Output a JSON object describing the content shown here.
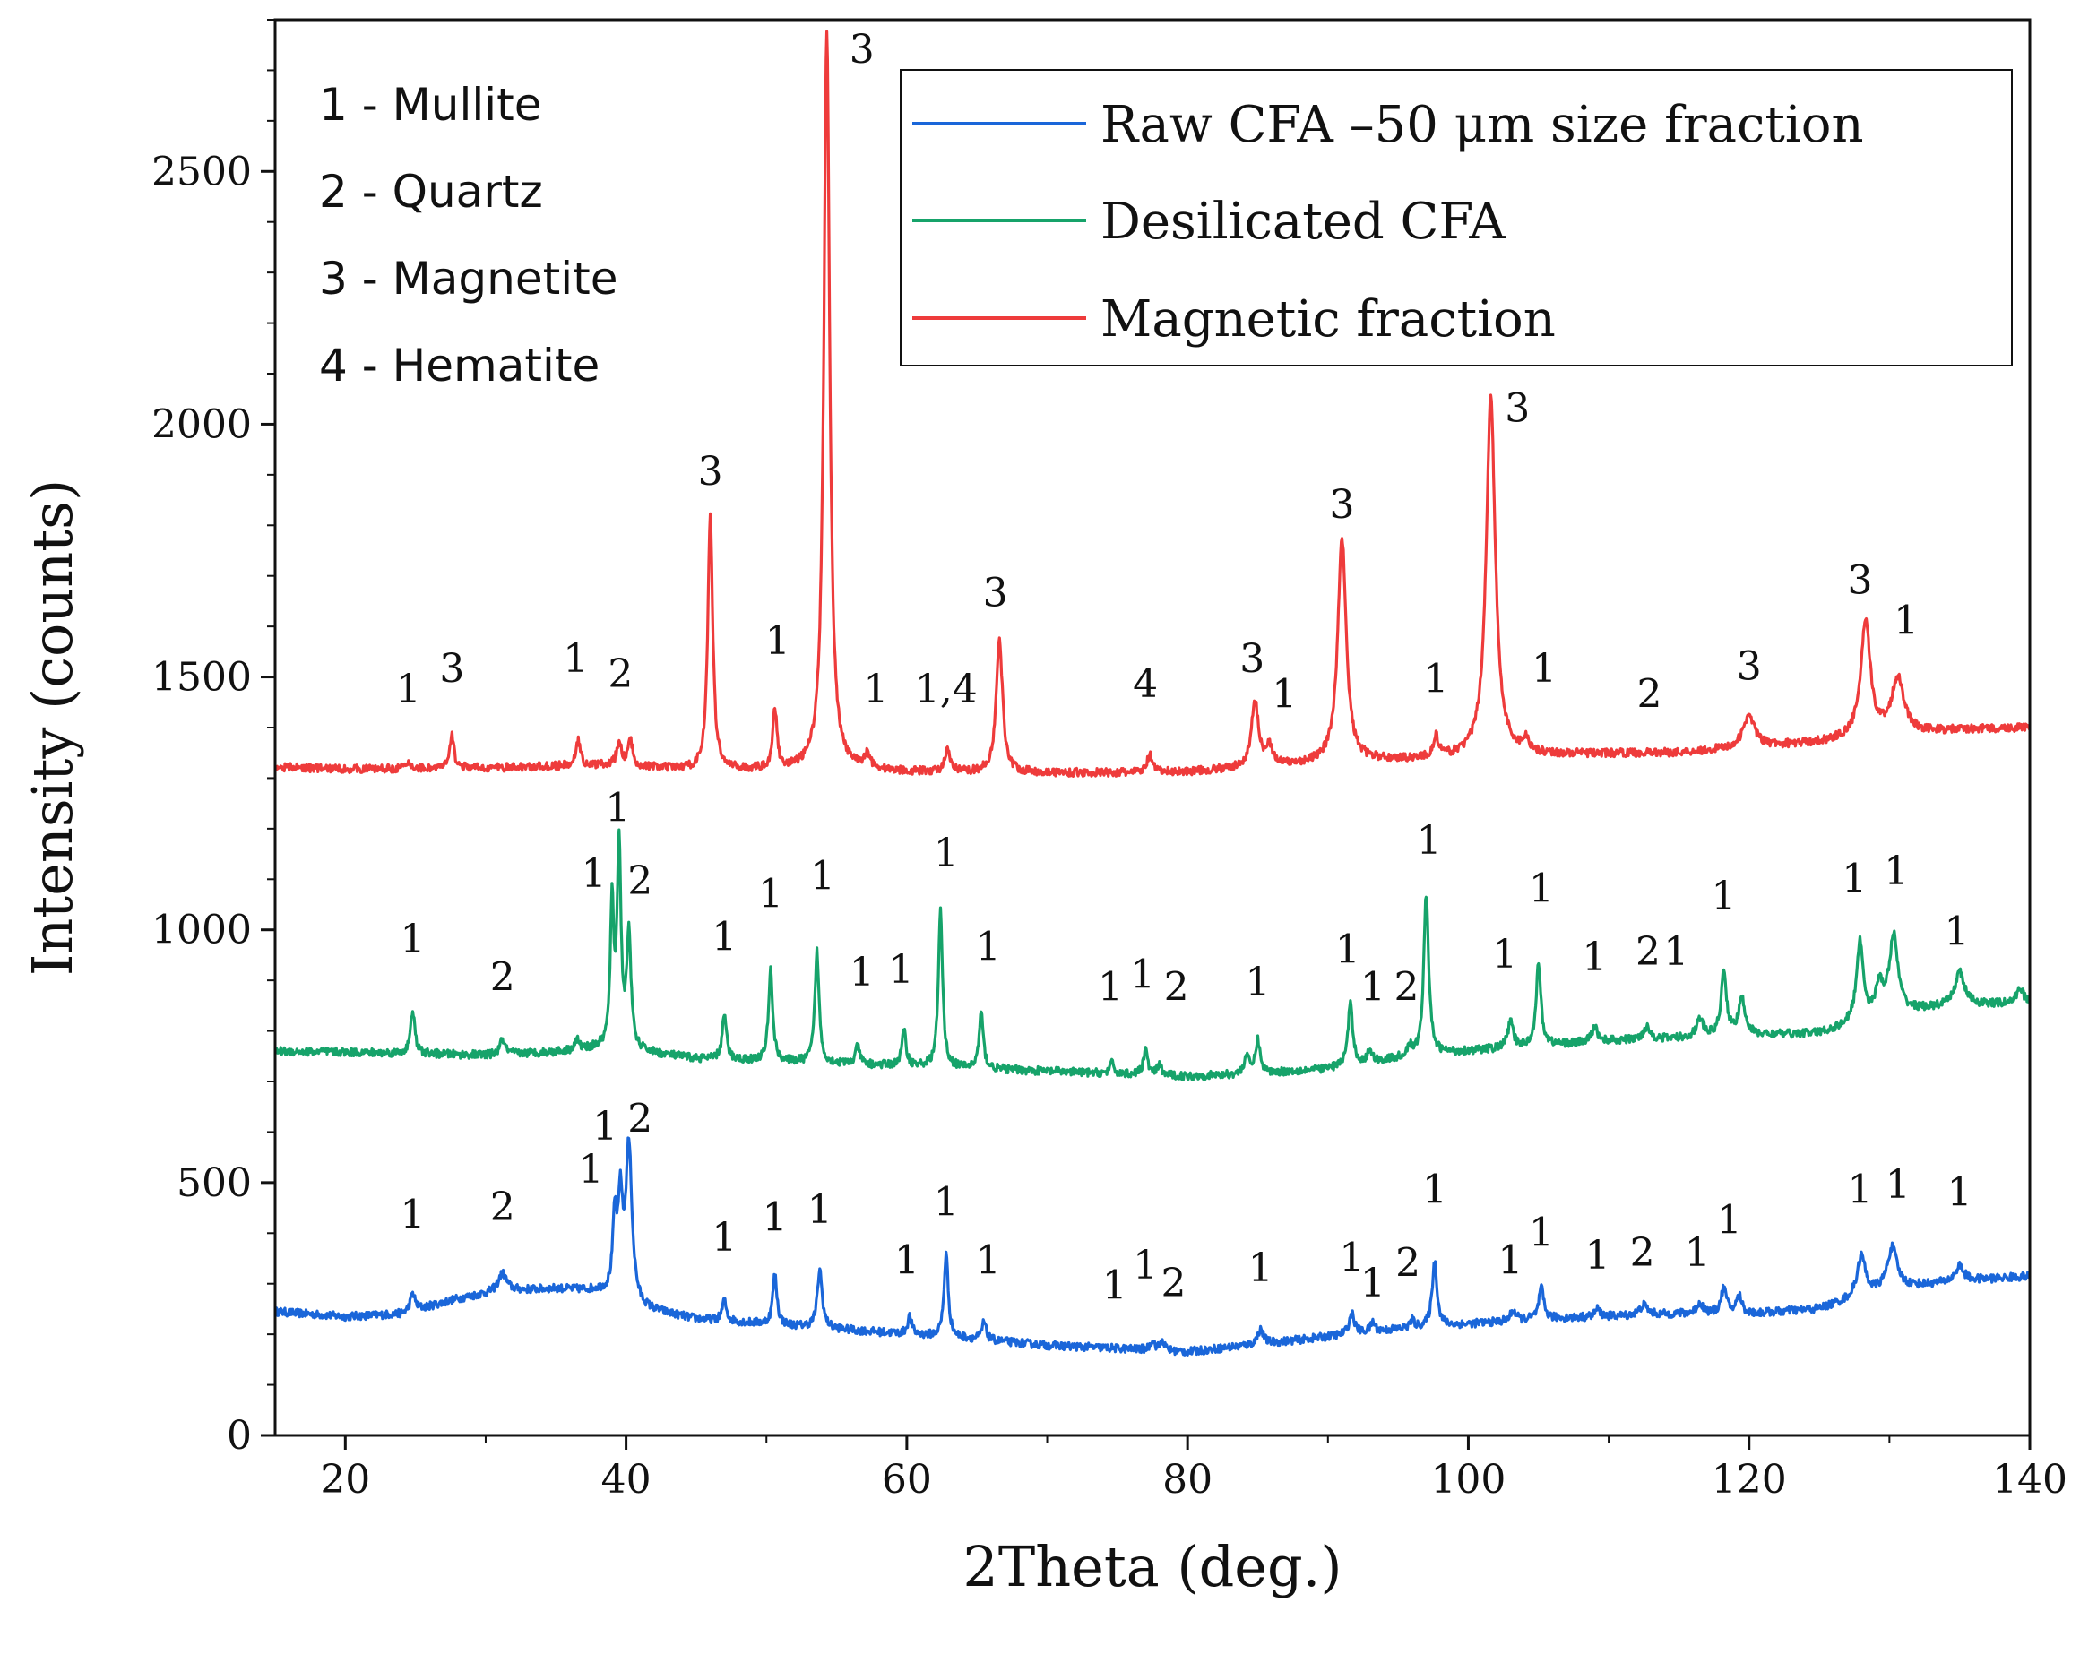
{
  "chart_data": {
    "type": "line",
    "title": "",
    "xlabel": "2Theta (deg.)",
    "ylabel": "Intensity (counts)",
    "xlim": [
      15,
      140
    ],
    "ylim": [
      0,
      2800
    ],
    "xticks": [
      20,
      40,
      60,
      80,
      100,
      120,
      140
    ],
    "yticks": [
      0,
      500,
      1000,
      1500,
      2000,
      2500
    ],
    "grid": false,
    "legend_position": "top-right",
    "phase_key": [
      "1 - Mullite",
      "2 - Quartz",
      "3 - Magnetite",
      "4 - Hematite"
    ],
    "series": [
      {
        "name": "Raw CFA –50 μm size fraction",
        "color": "#1a66d9",
        "baseline": [
          [
            15,
            245
          ],
          [
            20,
            235
          ],
          [
            24,
            240
          ],
          [
            28,
            270
          ],
          [
            31,
            285
          ],
          [
            35,
            290
          ],
          [
            38,
            285
          ],
          [
            41,
            250
          ],
          [
            45,
            230
          ],
          [
            50,
            220
          ],
          [
            55,
            210
          ],
          [
            60,
            200
          ],
          [
            65,
            190
          ],
          [
            70,
            178
          ],
          [
            75,
            172
          ],
          [
            80,
            165
          ],
          [
            85,
            180
          ],
          [
            90,
            195
          ],
          [
            95,
            210
          ],
          [
            100,
            220
          ],
          [
            105,
            230
          ],
          [
            110,
            235
          ],
          [
            115,
            240
          ],
          [
            120,
            240
          ],
          [
            125,
            250
          ],
          [
            130,
            290
          ],
          [
            135,
            305
          ],
          [
            140,
            315
          ]
        ],
        "peaks": [
          [
            24.8,
            35,
            0.35
          ],
          [
            31.2,
            35,
            0.6
          ],
          [
            39.2,
            150,
            0.3
          ],
          [
            39.6,
            180,
            0.3
          ],
          [
            40.2,
            310,
            0.45
          ],
          [
            47.0,
            40,
            0.3
          ],
          [
            50.6,
            100,
            0.3
          ],
          [
            53.8,
            115,
            0.35
          ],
          [
            60.2,
            35,
            0.3
          ],
          [
            62.8,
            165,
            0.3
          ],
          [
            65.5,
            35,
            0.3
          ],
          [
            77.5,
            20,
            0.3
          ],
          [
            78.2,
            20,
            0.3
          ],
          [
            85.2,
            30,
            0.4
          ],
          [
            91.7,
            40,
            0.4
          ],
          [
            93.2,
            20,
            0.3
          ],
          [
            96.0,
            15,
            0.3
          ],
          [
            97.6,
            130,
            0.35
          ],
          [
            103.2,
            20,
            0.4
          ],
          [
            105.2,
            60,
            0.35
          ],
          [
            109.2,
            15,
            0.4
          ],
          [
            112.5,
            20,
            0.6
          ],
          [
            116.5,
            20,
            0.5
          ],
          [
            118.2,
            50,
            0.4
          ],
          [
            119.3,
            35,
            0.4
          ],
          [
            128.0,
            80,
            0.6
          ],
          [
            130.2,
            80,
            0.7
          ],
          [
            135.0,
            30,
            0.6
          ]
        ],
        "peak_labels": [
          {
            "x": 24.8,
            "y": 410,
            "text": "1"
          },
          {
            "x": 31.2,
            "y": 425,
            "text": "2"
          },
          {
            "x": 37.5,
            "y": 500,
            "text": "1"
          },
          {
            "x": 38.5,
            "y": 585,
            "text": "1"
          },
          {
            "x": 41.0,
            "y": 600,
            "text": "2"
          },
          {
            "x": 47.0,
            "y": 365,
            "text": "1"
          },
          {
            "x": 50.6,
            "y": 405,
            "text": "1"
          },
          {
            "x": 53.8,
            "y": 420,
            "text": "1"
          },
          {
            "x": 60.0,
            "y": 320,
            "text": "1"
          },
          {
            "x": 62.8,
            "y": 435,
            "text": "1"
          },
          {
            "x": 65.8,
            "y": 320,
            "text": "1"
          },
          {
            "x": 74.8,
            "y": 270,
            "text": "1"
          },
          {
            "x": 77.0,
            "y": 310,
            "text": "1"
          },
          {
            "x": 79.0,
            "y": 275,
            "text": "2"
          },
          {
            "x": 85.2,
            "y": 305,
            "text": "1"
          },
          {
            "x": 91.7,
            "y": 325,
            "text": "1"
          },
          {
            "x": 93.2,
            "y": 275,
            "text": "1"
          },
          {
            "x": 95.7,
            "y": 315,
            "text": "2"
          },
          {
            "x": 97.6,
            "y": 460,
            "text": "1"
          },
          {
            "x": 103.0,
            "y": 320,
            "text": "1"
          },
          {
            "x": 105.2,
            "y": 375,
            "text": "1"
          },
          {
            "x": 109.2,
            "y": 330,
            "text": "1"
          },
          {
            "x": 112.4,
            "y": 335,
            "text": "2"
          },
          {
            "x": 116.3,
            "y": 335,
            "text": "1"
          },
          {
            "x": 118.6,
            "y": 400,
            "text": "1"
          },
          {
            "x": 127.9,
            "y": 460,
            "text": "1"
          },
          {
            "x": 130.6,
            "y": 470,
            "text": "1"
          },
          {
            "x": 135.0,
            "y": 455,
            "text": "1"
          }
        ]
      },
      {
        "name": "Desilicated CFA",
        "color": "#16a36a",
        "baseline": [
          [
            15,
            760
          ],
          [
            20,
            758
          ],
          [
            25,
            755
          ],
          [
            30,
            752
          ],
          [
            35,
            758
          ],
          [
            38,
            765
          ],
          [
            42,
            755
          ],
          [
            45,
            745
          ],
          [
            50,
            740
          ],
          [
            55,
            735
          ],
          [
            60,
            730
          ],
          [
            65,
            725
          ],
          [
            70,
            720
          ],
          [
            75,
            715
          ],
          [
            80,
            710
          ],
          [
            85,
            715
          ],
          [
            90,
            725
          ],
          [
            95,
            745
          ],
          [
            100,
            760
          ],
          [
            105,
            770
          ],
          [
            110,
            780
          ],
          [
            115,
            785
          ],
          [
            120,
            790
          ],
          [
            125,
            795
          ],
          [
            128,
            815
          ],
          [
            130,
            835
          ],
          [
            135,
            850
          ],
          [
            140,
            855
          ]
        ],
        "peaks": [
          [
            24.8,
            85,
            0.3
          ],
          [
            31.2,
            30,
            0.35
          ],
          [
            36.5,
            20,
            0.3
          ],
          [
            39.0,
            280,
            0.25
          ],
          [
            39.5,
            400,
            0.28
          ],
          [
            40.2,
            230,
            0.3
          ],
          [
            47.0,
            90,
            0.3
          ],
          [
            50.3,
            180,
            0.3
          ],
          [
            53.6,
            220,
            0.3
          ],
          [
            56.5,
            35,
            0.3
          ],
          [
            59.8,
            70,
            0.3
          ],
          [
            62.4,
            310,
            0.3
          ],
          [
            65.3,
            110,
            0.3
          ],
          [
            74.6,
            20,
            0.3
          ],
          [
            77.0,
            50,
            0.3
          ],
          [
            78.0,
            20,
            0.3
          ],
          [
            84.2,
            35,
            0.35
          ],
          [
            85.0,
            65,
            0.35
          ],
          [
            91.6,
            120,
            0.35
          ],
          [
            93.0,
            25,
            0.3
          ],
          [
            95.8,
            20,
            0.3
          ],
          [
            97.0,
            320,
            0.35
          ],
          [
            103.0,
            50,
            0.4
          ],
          [
            105.0,
            160,
            0.35
          ],
          [
            109.0,
            30,
            0.4
          ],
          [
            112.7,
            25,
            0.5
          ],
          [
            116.5,
            35,
            0.5
          ],
          [
            118.2,
            125,
            0.4
          ],
          [
            119.5,
            70,
            0.5
          ],
          [
            127.9,
            160,
            0.5
          ],
          [
            129.3,
            60,
            0.5
          ],
          [
            130.3,
            150,
            0.6
          ],
          [
            135.0,
            65,
            0.7
          ],
          [
            139.3,
            30,
            0.5
          ]
        ],
        "peak_labels": [
          {
            "x": 24.8,
            "y": 955,
            "text": "1"
          },
          {
            "x": 31.2,
            "y": 880,
            "text": "2"
          },
          {
            "x": 37.7,
            "y": 1085,
            "text": "1"
          },
          {
            "x": 39.4,
            "y": 1215,
            "text": "1"
          },
          {
            "x": 41.0,
            "y": 1070,
            "text": "2"
          },
          {
            "x": 47.0,
            "y": 960,
            "text": "1"
          },
          {
            "x": 50.3,
            "y": 1045,
            "text": "1"
          },
          {
            "x": 54.0,
            "y": 1080,
            "text": "1"
          },
          {
            "x": 56.8,
            "y": 890,
            "text": "1"
          },
          {
            "x": 59.6,
            "y": 895,
            "text": "1"
          },
          {
            "x": 62.8,
            "y": 1125,
            "text": "1"
          },
          {
            "x": 65.8,
            "y": 940,
            "text": "1"
          },
          {
            "x": 74.5,
            "y": 860,
            "text": "1"
          },
          {
            "x": 76.8,
            "y": 885,
            "text": "1"
          },
          {
            "x": 79.2,
            "y": 860,
            "text": "2"
          },
          {
            "x": 85.0,
            "y": 870,
            "text": "1"
          },
          {
            "x": 91.4,
            "y": 935,
            "text": "1"
          },
          {
            "x": 93.2,
            "y": 860,
            "text": "1"
          },
          {
            "x": 95.6,
            "y": 860,
            "text": "2"
          },
          {
            "x": 97.2,
            "y": 1150,
            "text": "1"
          },
          {
            "x": 102.6,
            "y": 925,
            "text": "1"
          },
          {
            "x": 105.2,
            "y": 1055,
            "text": "1"
          },
          {
            "x": 109.0,
            "y": 920,
            "text": "1"
          },
          {
            "x": 112.8,
            "y": 930,
            "text": "2"
          },
          {
            "x": 114.8,
            "y": 930,
            "text": "1"
          },
          {
            "x": 118.2,
            "y": 1040,
            "text": "1"
          },
          {
            "x": 127.5,
            "y": 1075,
            "text": "1"
          },
          {
            "x": 130.5,
            "y": 1090,
            "text": "1"
          },
          {
            "x": 134.8,
            "y": 970,
            "text": "1"
          }
        ]
      },
      {
        "name": "Magnetic fraction",
        "color": "#ee3b3b",
        "baseline": [
          [
            15,
            1322
          ],
          [
            20,
            1318
          ],
          [
            30,
            1320
          ],
          [
            38,
            1325
          ],
          [
            42,
            1320
          ],
          [
            45,
            1315
          ],
          [
            50,
            1315
          ],
          [
            55,
            1315
          ],
          [
            60,
            1312
          ],
          [
            65,
            1310
          ],
          [
            70,
            1310
          ],
          [
            75,
            1310
          ],
          [
            80,
            1312
          ],
          [
            85,
            1320
          ],
          [
            90,
            1330
          ],
          [
            95,
            1335
          ],
          [
            100,
            1340
          ],
          [
            105,
            1345
          ],
          [
            110,
            1348
          ],
          [
            115,
            1350
          ],
          [
            120,
            1360
          ],
          [
            125,
            1370
          ],
          [
            130,
            1385
          ],
          [
            135,
            1395
          ],
          [
            140,
            1400
          ]
        ],
        "peaks": [
          [
            24.5,
            10,
            0.4
          ],
          [
            27.6,
            65,
            0.3
          ],
          [
            36.6,
            50,
            0.3
          ],
          [
            39.5,
            45,
            0.35
          ],
          [
            40.3,
            50,
            0.35
          ],
          [
            46.0,
            505,
            0.35
          ],
          [
            50.6,
            120,
            0.3
          ],
          [
            54.3,
            1465,
            0.42
          ],
          [
            57.2,
            30,
            0.4
          ],
          [
            62.9,
            40,
            0.4
          ],
          [
            66.6,
            265,
            0.45
          ],
          [
            77.3,
            35,
            0.35
          ],
          [
            84.8,
            130,
            0.5
          ],
          [
            85.8,
            40,
            0.5
          ],
          [
            91.0,
            445,
            0.6
          ],
          [
            97.7,
            40,
            0.35
          ],
          [
            101.6,
            715,
            0.65
          ],
          [
            104.1,
            25,
            0.5
          ],
          [
            120.0,
            65,
            0.8
          ],
          [
            128.3,
            225,
            0.7
          ],
          [
            130.6,
            110,
            0.9
          ]
        ],
        "peak_labels": [
          {
            "x": 24.5,
            "y": 1450,
            "text": "1"
          },
          {
            "x": 27.6,
            "y": 1490,
            "text": "3"
          },
          {
            "x": 36.4,
            "y": 1510,
            "text": "1"
          },
          {
            "x": 39.6,
            "y": 1480,
            "text": "2"
          },
          {
            "x": 46.0,
            "y": 1880,
            "text": "3"
          },
          {
            "x": 50.8,
            "y": 1545,
            "text": "1"
          },
          {
            "x": 56.8,
            "y": 2715,
            "text": "3"
          },
          {
            "x": 57.8,
            "y": 1450,
            "text": "1"
          },
          {
            "x": 62.8,
            "y": 1450,
            "text": "1,4"
          },
          {
            "x": 66.3,
            "y": 1640,
            "text": "3"
          },
          {
            "x": 77.0,
            "y": 1460,
            "text": "4"
          },
          {
            "x": 84.6,
            "y": 1510,
            "text": "3"
          },
          {
            "x": 86.9,
            "y": 1440,
            "text": "1"
          },
          {
            "x": 91.0,
            "y": 1815,
            "text": "3"
          },
          {
            "x": 97.7,
            "y": 1470,
            "text": "1"
          },
          {
            "x": 103.5,
            "y": 2005,
            "text": "3"
          },
          {
            "x": 105.4,
            "y": 1490,
            "text": "1"
          },
          {
            "x": 112.9,
            "y": 1440,
            "text": "2"
          },
          {
            "x": 120.0,
            "y": 1495,
            "text": "3"
          },
          {
            "x": 127.9,
            "y": 1665,
            "text": "3"
          },
          {
            "x": 131.2,
            "y": 1585,
            "text": "1"
          }
        ]
      }
    ]
  }
}
